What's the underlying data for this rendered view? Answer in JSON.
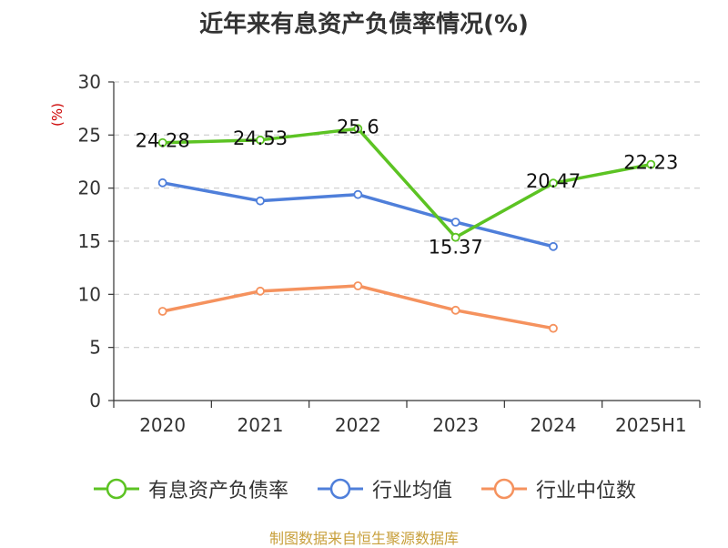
{
  "title": "近年来有息资产负债率情况(%)",
  "source": "制图数据来自恒生聚源数据库",
  "chart_data": {
    "type": "line",
    "categories": [
      "2020",
      "2021",
      "2022",
      "2023",
      "2024",
      "2025H1"
    ],
    "ylabel": "(%)",
    "ylim": [
      0,
      30
    ],
    "yticks": [
      0,
      5,
      10,
      15,
      20,
      25,
      30
    ],
    "grid": true,
    "legend_position": "bottom",
    "series": [
      {
        "name": "有息资产负债率",
        "color": "#5cc323",
        "values": [
          24.28,
          24.53,
          25.6,
          15.37,
          20.47,
          22.23
        ],
        "labels": [
          "24.28",
          "24.53",
          "25.6",
          "15.37",
          "20.47",
          "22.23"
        ]
      },
      {
        "name": "行业均值",
        "color": "#4f7fda",
        "values": [
          20.5,
          18.8,
          19.4,
          16.8,
          14.5,
          null
        ]
      },
      {
        "name": "行业中位数",
        "color": "#f5925e",
        "values": [
          8.4,
          10.3,
          10.8,
          8.5,
          6.8,
          null
        ]
      }
    ]
  }
}
